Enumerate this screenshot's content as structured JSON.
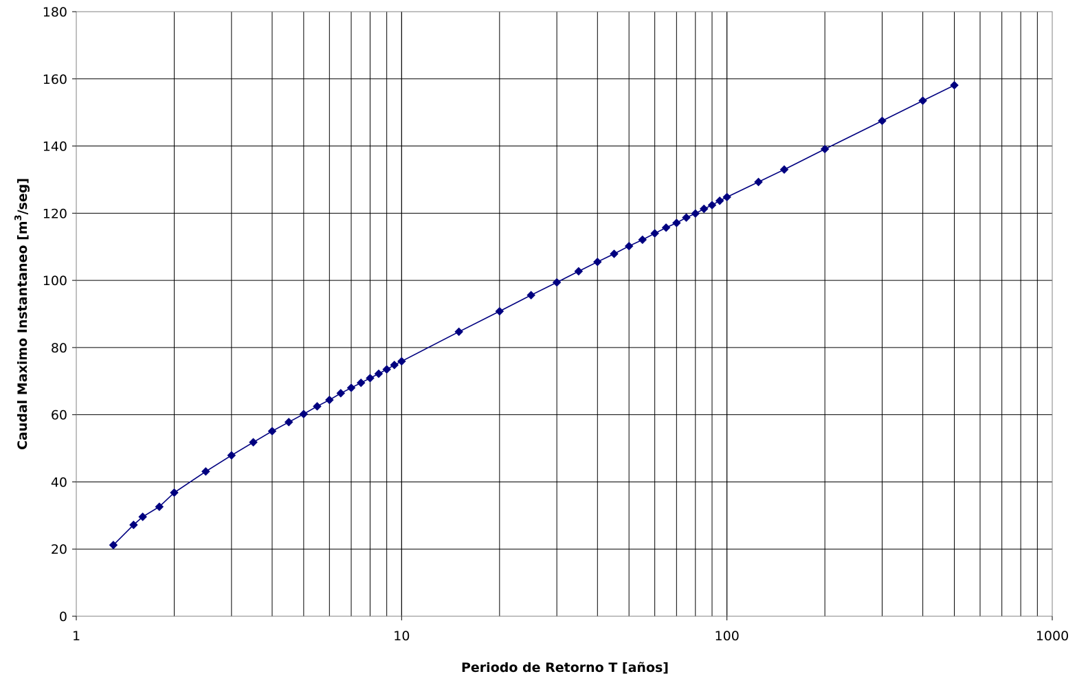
{
  "chart_data": {
    "type": "line",
    "title": "",
    "xlabel": "Periodo de Retorno T [años]",
    "ylabel": {
      "prefix": "Caudal Maximo Instantaneo [m",
      "superscript": "3",
      "suffix": "/seg]"
    },
    "x_scale": "log",
    "xlim": [
      1,
      1000
    ],
    "ylim": [
      0,
      180
    ],
    "x_ticks": [
      1,
      10,
      100,
      1000
    ],
    "x_tick_labels": [
      "1",
      "10",
      "100",
      "1000"
    ],
    "y_ticks": [
      0,
      20,
      40,
      60,
      80,
      100,
      120,
      140,
      160,
      180
    ],
    "y_tick_labels": [
      "0",
      "20",
      "40",
      "60",
      "80",
      "100",
      "120",
      "140",
      "160",
      "180"
    ],
    "grid": true,
    "legend": "none",
    "colors": {
      "series": "#000080",
      "grid": "#000000",
      "background": "#ffffff"
    },
    "series": [
      {
        "marker": "diamond",
        "x": [
          1.3,
          1.5,
          1.6,
          1.8,
          2,
          2.5,
          3,
          3.5,
          4,
          4.5,
          5,
          5.5,
          6,
          6.5,
          7,
          7.5,
          8,
          8.5,
          9,
          9.5,
          10,
          15,
          20,
          25,
          30,
          35,
          40,
          45,
          50,
          55,
          60,
          65,
          70,
          75,
          80,
          85,
          90,
          95,
          100,
          125,
          150,
          200,
          300,
          400,
          500
        ],
        "y": [
          21.2,
          27.2,
          29.6,
          32.6,
          36.8,
          43.1,
          47.9,
          51.8,
          55.1,
          57.8,
          60.2,
          62.5,
          64.4,
          66.4,
          68.0,
          69.5,
          70.9,
          72.2,
          73.5,
          74.8,
          75.9,
          84.7,
          90.8,
          95.6,
          99.4,
          102.7,
          105.5,
          107.9,
          110.2,
          112.1,
          114.0,
          115.7,
          117.1,
          118.7,
          119.9,
          121.3,
          122.4,
          123.7,
          124.8,
          129.3,
          133.0,
          139.1,
          147.5,
          153.5,
          158.1
        ]
      }
    ]
  }
}
